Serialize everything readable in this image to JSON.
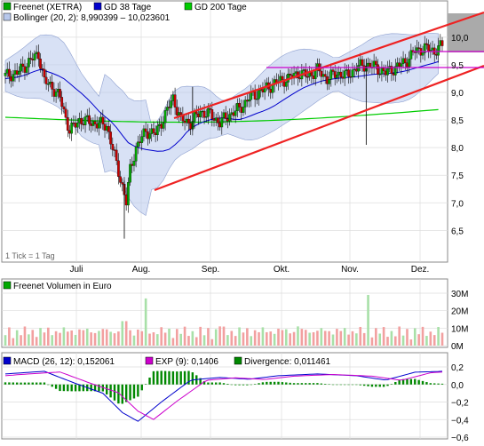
{
  "colors": {
    "candle_up": "#00a800",
    "candle_down": "#c80000",
    "gd38": "#0000cc",
    "gd200": "#00cc00",
    "bollinger_fill": "#b8c8ec",
    "channel": "#ee2222",
    "magenta": "#cc00cc",
    "volume_bar": "#f2a0a0",
    "macd_line": "#0000cc",
    "exp_line": "#cc00cc",
    "divergence": "#008800"
  },
  "price_chart": {
    "legend": [
      {
        "name": "Freenet (XETRA)",
        "color": "#00a800"
      },
      {
        "name": "GD 38 Tage",
        "color": "#0000cc"
      },
      {
        "name": "GD 200 Tage",
        "color": "#00cc00"
      }
    ],
    "bollinger_label": "Bollinger (20, 2): 8,990399 – 10,023601",
    "tick_note": "1 Tick = 1 Tag",
    "y_ticks": [
      "6,5",
      "7,0",
      "7,5",
      "8,0",
      "8,5",
      "9,0",
      "9,5",
      "10,0"
    ],
    "x_labels": [
      "Juli",
      "Aug.",
      "Sep.",
      "Okt.",
      "Nov.",
      "Dez."
    ]
  },
  "volume_chart": {
    "legend": "Freenet Volumen in Euro",
    "y_ticks": [
      "0M",
      "10M",
      "20M",
      "30M"
    ]
  },
  "macd_chart": {
    "legend": [
      {
        "name": "MACD (26, 12): 0,152061",
        "color": "#0000cc"
      },
      {
        "name": "EXP (9): 0,1406",
        "color": "#cc00cc"
      },
      {
        "name": "Divergence: 0,011461",
        "color": "#008800"
      }
    ],
    "y_ticks": [
      "0,2",
      "0,0",
      "−0,2",
      "−0,4",
      "−0,6"
    ]
  },
  "chart_data": {
    "type": "line",
    "x": [
      "Juli",
      "Aug.",
      "Sep.",
      "Okt.",
      "Nov.",
      "Dez."
    ],
    "series": [
      {
        "name": "Freenet (XETRA)",
        "values": [
          9.3,
          8.4,
          8.3,
          8.7,
          9.2,
          9.8
        ]
      },
      {
        "name": "GD 38 Tage",
        "values": [
          9.2,
          8.6,
          8.2,
          8.6,
          9.0,
          9.4
        ]
      },
      {
        "name": "GD 200 Tage",
        "values": [
          8.6,
          8.5,
          8.4,
          8.5,
          8.6,
          8.7
        ]
      }
    ],
    "ylim": [
      6.2,
      10.4
    ],
    "volume_ylim": [
      0,
      30
    ],
    "macd_ylim": [
      -0.6,
      0.2
    ],
    "grid": true
  }
}
